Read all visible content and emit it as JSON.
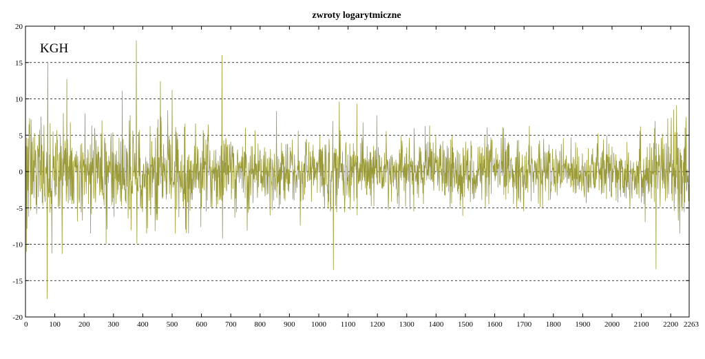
{
  "chart_data": {
    "type": "line",
    "title": "zwroty logarytmiczne",
    "annotation": "KGH",
    "xlabel": "",
    "ylabel": "",
    "xlim": [
      0,
      2263
    ],
    "ylim": [
      -20,
      20
    ],
    "x_ticks": [
      0,
      100,
      200,
      300,
      400,
      500,
      600,
      700,
      800,
      900,
      1000,
      1100,
      1200,
      1300,
      1400,
      1500,
      1600,
      1700,
      1800,
      1900,
      2000,
      2100,
      2200,
      2263
    ],
    "y_ticks": [
      -20,
      -15,
      -10,
      -5,
      0,
      5,
      10,
      15,
      20
    ],
    "grid": "horizontal dashed",
    "series": [
      {
        "color": "#9a9a3a",
        "n_points": 2263,
        "peaks": [
          {
            "x": 0,
            "y": 9.0
          },
          {
            "x": 3,
            "y": -11.0
          },
          {
            "x": 76,
            "y": 15.0
          },
          {
            "x": 74,
            "y": -17.5
          },
          {
            "x": 90,
            "y": -11.2
          },
          {
            "x": 125,
            "y": -11.3
          },
          {
            "x": 141,
            "y": 12.7
          },
          {
            "x": 275,
            "y": -9.9
          },
          {
            "x": 330,
            "y": 11.1
          },
          {
            "x": 378,
            "y": 18.0
          },
          {
            "x": 380,
            "y": -9.9
          },
          {
            "x": 460,
            "y": 12.4
          },
          {
            "x": 500,
            "y": 11.2
          },
          {
            "x": 670,
            "y": 16.0
          },
          {
            "x": 672,
            "y": -9.2
          },
          {
            "x": 1070,
            "y": 9.6
          },
          {
            "x": 1050,
            "y": -13.5
          },
          {
            "x": 1130,
            "y": 9.3
          },
          {
            "x": 2150,
            "y": -13.4
          },
          {
            "x": 2220,
            "y": 9.1
          }
        ],
        "volatility": [
          {
            "x": 0,
            "sd": 3.6
          },
          {
            "x": 200,
            "sd": 3.0
          },
          {
            "x": 330,
            "sd": 3.3
          },
          {
            "x": 520,
            "sd": 2.9
          },
          {
            "x": 700,
            "sd": 2.6
          },
          {
            "x": 900,
            "sd": 2.3
          },
          {
            "x": 1100,
            "sd": 2.6
          },
          {
            "x": 1300,
            "sd": 2.0
          },
          {
            "x": 1500,
            "sd": 2.3
          },
          {
            "x": 1700,
            "sd": 2.1
          },
          {
            "x": 1900,
            "sd": 1.8
          },
          {
            "x": 2100,
            "sd": 2.5
          },
          {
            "x": 2263,
            "sd": 3.3
          }
        ]
      }
    ]
  }
}
